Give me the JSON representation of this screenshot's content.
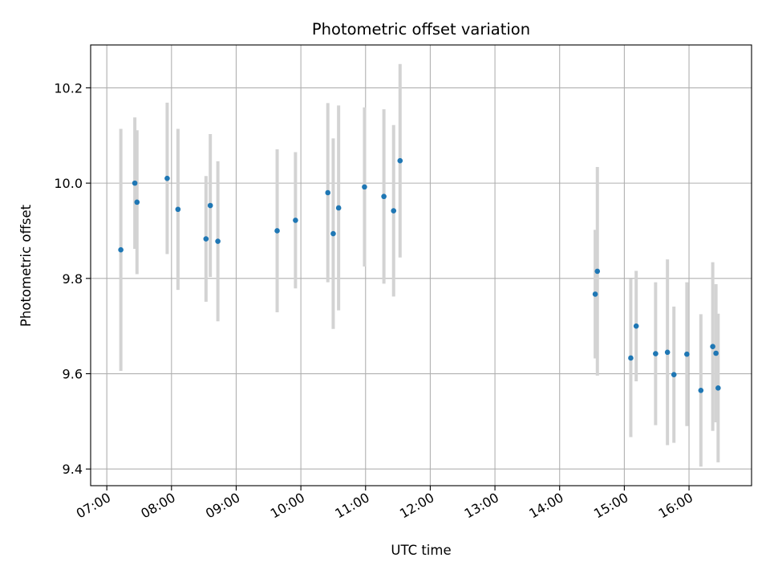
{
  "chart_data": {
    "type": "scatter",
    "title": "Photometric offset variation",
    "xlabel": "UTC time",
    "ylabel": "Photometric offset",
    "x_axis_kind": "time",
    "xlim": [
      "06:45",
      "16:58"
    ],
    "ylim": [
      9.365,
      10.29
    ],
    "grid": true,
    "x_ticks": [
      "07:00",
      "08:00",
      "09:00",
      "10:00",
      "11:00",
      "12:00",
      "13:00",
      "14:00",
      "15:00",
      "16:00"
    ],
    "y_ticks": [
      9.4,
      9.6,
      9.8,
      10.0,
      10.2
    ],
    "y_tick_labels": [
      "9.4",
      "9.6",
      "9.8",
      "10.0",
      "10.2"
    ],
    "colors": {
      "point": "#1f77b4",
      "errorbar": "#d3d3d3",
      "grid": "#b0b0b0"
    },
    "points": [
      {
        "x": "07:13",
        "y": 9.86,
        "yerr": 0.254
      },
      {
        "x": "07:26",
        "y": 10.0,
        "yerr": 0.138
      },
      {
        "x": "07:28",
        "y": 9.96,
        "yerr": 0.151
      },
      {
        "x": "07:56",
        "y": 10.01,
        "yerr": 0.159
      },
      {
        "x": "08:06",
        "y": 9.945,
        "yerr": 0.169
      },
      {
        "x": "08:32",
        "y": 9.883,
        "yerr": 0.132
      },
      {
        "x": "08:36",
        "y": 9.953,
        "yerr": 0.15
      },
      {
        "x": "08:43",
        "y": 9.878,
        "yerr": 0.168
      },
      {
        "x": "09:38",
        "y": 9.9,
        "yerr": 0.171
      },
      {
        "x": "09:55",
        "y": 9.922,
        "yerr": 0.143
      },
      {
        "x": "10:25",
        "y": 9.98,
        "yerr": 0.188
      },
      {
        "x": "10:30",
        "y": 9.894,
        "yerr": 0.2
      },
      {
        "x": "10:35",
        "y": 9.948,
        "yerr": 0.215
      },
      {
        "x": "10:59",
        "y": 9.992,
        "yerr": 0.167
      },
      {
        "x": "11:17",
        "y": 9.972,
        "yerr": 0.183
      },
      {
        "x": "11:26",
        "y": 9.942,
        "yerr": 0.18
      },
      {
        "x": "11:32",
        "y": 10.047,
        "yerr": 0.203
      },
      {
        "x": "14:33",
        "y": 9.767,
        "yerr": 0.135
      },
      {
        "x": "14:35",
        "y": 9.815,
        "yerr": 0.219
      },
      {
        "x": "15:06",
        "y": 9.633,
        "yerr": 0.166
      },
      {
        "x": "15:11",
        "y": 9.7,
        "yerr": 0.116
      },
      {
        "x": "15:29",
        "y": 9.642,
        "yerr": 0.15
      },
      {
        "x": "15:40",
        "y": 9.645,
        "yerr": 0.195
      },
      {
        "x": "15:46",
        "y": 9.598,
        "yerr": 0.143
      },
      {
        "x": "15:58",
        "y": 9.641,
        "yerr": 0.151
      },
      {
        "x": "16:11",
        "y": 9.565,
        "yerr": 0.16
      },
      {
        "x": "16:22",
        "y": 9.657,
        "yerr": 0.177
      },
      {
        "x": "16:25",
        "y": 9.643,
        "yerr": 0.145
      },
      {
        "x": "16:27",
        "y": 9.57,
        "yerr": 0.156
      }
    ]
  }
}
